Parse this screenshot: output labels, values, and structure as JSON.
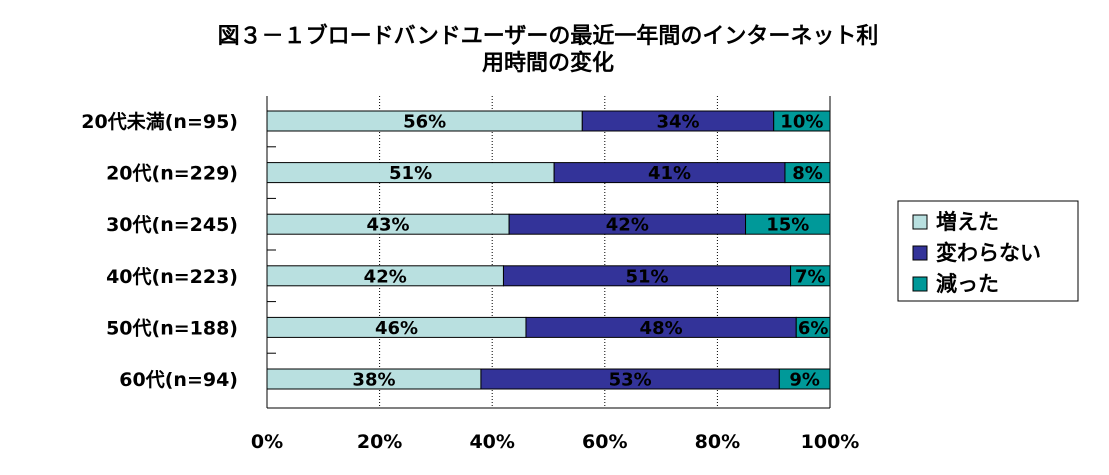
{
  "chart_data": {
    "type": "bar",
    "orientation": "horizontal",
    "stacked": "percent",
    "title": "図３－１ブロードバンドユーザーの最近一年間のインターネット利用時間の変化",
    "title_lines": [
      "図３－１ブロードバンドユーザーの最近一年間のインターネット利",
      "用時間の変化"
    ],
    "categories": [
      "20代未満(n=95)",
      "20代(n=229)",
      "30代(n=245)",
      "40代(n=223)",
      "50代(n=188)",
      "60代(n=94)"
    ],
    "series": [
      {
        "name": "増えた",
        "color": "#b9e0e0",
        "values": [
          56,
          51,
          43,
          42,
          46,
          38
        ]
      },
      {
        "name": "変わらない",
        "color": "#333399",
        "values": [
          34,
          41,
          42,
          51,
          48,
          53
        ]
      },
      {
        "name": "減った",
        "color": "#009999",
        "values": [
          10,
          8,
          15,
          7,
          6,
          9
        ]
      }
    ],
    "data_label_suffix": "%",
    "x_ticks": [
      "0%",
      "20%",
      "40%",
      "60%",
      "80%",
      "100%"
    ],
    "xlim": [
      0,
      100
    ],
    "grid": true,
    "legend_position": "right"
  }
}
